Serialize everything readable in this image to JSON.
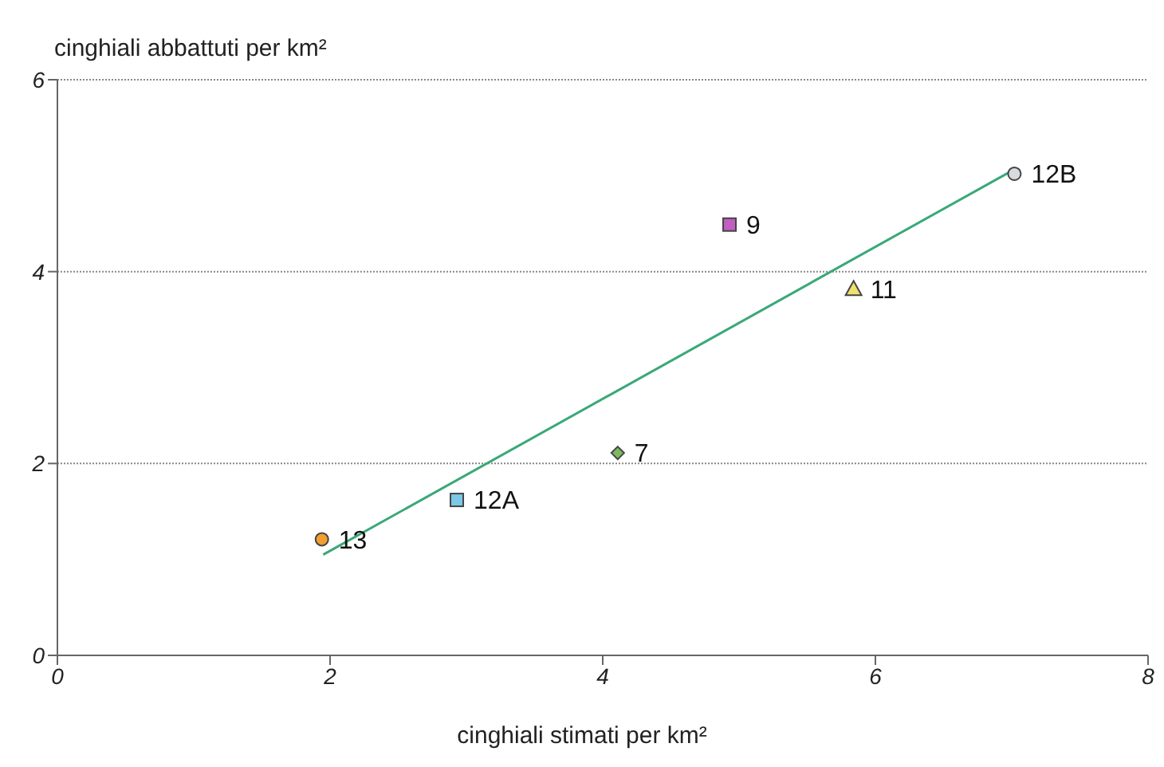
{
  "chart_data": {
    "type": "scatter",
    "xlabel": "cinghiali stimati per km²",
    "ylabel": "cinghiali abbattuti per km²",
    "xlim": [
      0,
      8
    ],
    "xticks": [
      0,
      2,
      4,
      6,
      8
    ],
    "ylim": [
      0,
      6
    ],
    "yticks": [
      0,
      2,
      4,
      6
    ],
    "grid": "y",
    "series": [
      {
        "name": "13",
        "color": "#f0a030",
        "marker": "circle",
        "x": [
          1.94
        ],
        "values": [
          1.21
        ]
      },
      {
        "name": "12A",
        "color": "#7cc8e8",
        "marker": "square",
        "x": [
          2.93
        ],
        "values": [
          1.62
        ]
      },
      {
        "name": "7",
        "color": "#7cb860",
        "marker": "diamond",
        "x": [
          4.11
        ],
        "values": [
          2.11
        ]
      },
      {
        "name": "9",
        "color": "#c060c0",
        "marker": "square",
        "x": [
          4.93
        ],
        "values": [
          4.49
        ]
      },
      {
        "name": "11",
        "color": "#f0e070",
        "marker": "triangle",
        "x": [
          5.84
        ],
        "values": [
          3.82
        ]
      },
      {
        "name": "12B",
        "color": "#d8dce0",
        "marker": "circle",
        "x": [
          7.02
        ],
        "values": [
          5.02
        ]
      },
      {
        "type": "line",
        "color": "#3aa878",
        "marker": "none",
        "x": [
          1.95,
          7.0
        ],
        "values": [
          1.05,
          5.05
        ]
      }
    ]
  }
}
